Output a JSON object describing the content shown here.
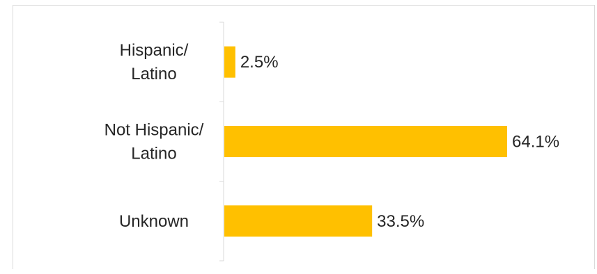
{
  "chart_data": {
    "type": "bar",
    "orientation": "horizontal",
    "categories": [
      [
        "Hispanic/",
        "Latino"
      ],
      [
        "Not Hispanic/",
        "Latino"
      ],
      [
        "Unknown"
      ]
    ],
    "values": [
      2.5,
      64.1,
      33.5
    ],
    "data_labels": [
      "2.5%",
      "64.1%",
      "33.5%"
    ],
    "title": "",
    "xlabel": "",
    "ylabel": "",
    "xlim": [
      0,
      64.1
    ],
    "grid": false,
    "legend": "none",
    "bar_color": "#FFC000",
    "axis_color": "#d9d9d9",
    "text_color": "#262626"
  }
}
